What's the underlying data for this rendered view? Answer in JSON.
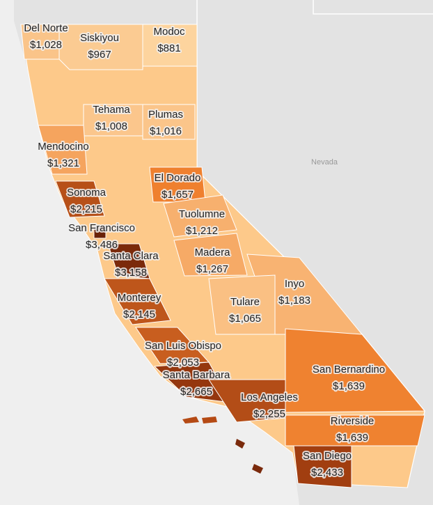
{
  "map": {
    "region_label": "Nevada",
    "counties": [
      {
        "name": "Del Norte",
        "value": 1028,
        "label": "$1,028"
      },
      {
        "name": "Siskiyou",
        "value": 967,
        "label": "$967"
      },
      {
        "name": "Modoc",
        "value": 881,
        "label": "$881"
      },
      {
        "name": "Tehama",
        "value": 1008,
        "label": "$1,008"
      },
      {
        "name": "Plumas",
        "value": 1016,
        "label": "$1,016"
      },
      {
        "name": "Mendocino",
        "value": 1321,
        "label": "$1,321"
      },
      {
        "name": "El Dorado",
        "value": 1657,
        "label": "$1,657"
      },
      {
        "name": "Sonoma",
        "value": 2215,
        "label": "$2,215"
      },
      {
        "name": "Tuolumne",
        "value": 1212,
        "label": "$1,212"
      },
      {
        "name": "San Francisco",
        "value": 3486,
        "label": "$3,486"
      },
      {
        "name": "Santa Clara",
        "value": 3158,
        "label": "$3,158"
      },
      {
        "name": "Madera",
        "value": 1267,
        "label": "$1,267"
      },
      {
        "name": "Inyo",
        "value": 1183,
        "label": "$1,183"
      },
      {
        "name": "Monterey",
        "value": 2145,
        "label": "$2,145"
      },
      {
        "name": "Tulare",
        "value": 1065,
        "label": "$1,065"
      },
      {
        "name": "San Luis Obispo",
        "value": 2053,
        "label": "$2,053"
      },
      {
        "name": "Santa Barbara",
        "value": 2665,
        "label": "$2,665"
      },
      {
        "name": "Los Angeles",
        "value": 2255,
        "label": "$2,255"
      },
      {
        "name": "San Bernardino",
        "value": 1639,
        "label": "$1,639"
      },
      {
        "name": "Riverside",
        "value": 1639,
        "label": "$1,639"
      },
      {
        "name": "San Diego",
        "value": 2433,
        "label": "$2,433"
      }
    ]
  }
}
